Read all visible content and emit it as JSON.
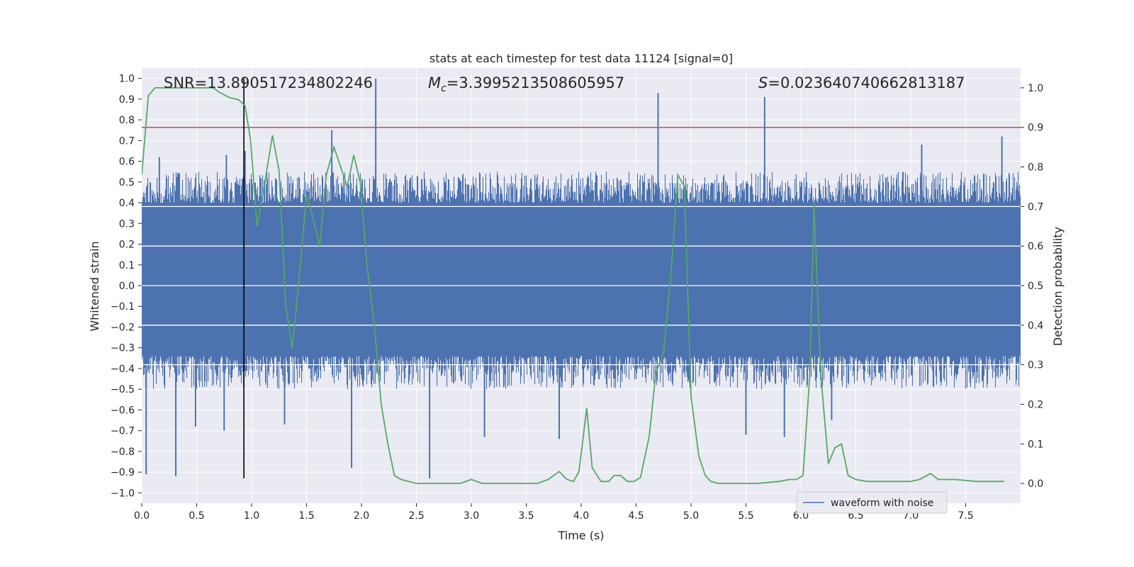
{
  "chart_data": {
    "type": "line",
    "title": "stats at each timestep for test data 11124 [signal=0]",
    "xlabel": "Time (s)",
    "ylabel": "Whitened strain",
    "y2label": "Detection probability",
    "xlim": [
      0.0,
      8.0
    ],
    "ylim": [
      -1.05,
      1.05
    ],
    "y2lim": [
      -0.05,
      1.05
    ],
    "x_ticks": [
      0.0,
      0.5,
      1.0,
      1.5,
      2.0,
      2.5,
      3.0,
      3.5,
      4.0,
      4.5,
      5.0,
      5.5,
      6.0,
      6.5,
      7.0,
      7.5
    ],
    "y_ticks": [
      -1.0,
      -0.9,
      -0.8,
      -0.7,
      -0.6,
      -0.5,
      -0.4,
      -0.3,
      -0.2,
      -0.1,
      0.0,
      0.1,
      0.2,
      0.3,
      0.4,
      0.5,
      0.6,
      0.7,
      0.8,
      0.9,
      1.0
    ],
    "y2_ticks": [
      0.0,
      0.1,
      0.2,
      0.3,
      0.4,
      0.5,
      0.6,
      0.7,
      0.8,
      0.9,
      1.0
    ],
    "grid": true,
    "legend_position": "lower-right",
    "annotations": {
      "snr": "SNR=13.890517234802246",
      "mc_symbol": "M",
      "mc_sub": "c",
      "mc_value": "=3.3995213508605957",
      "s_symbol": "S",
      "s_value": "=0.023640740662813187"
    },
    "series": [
      {
        "name": "waveform with noise",
        "axis": "left",
        "kind": "noise_envelope",
        "core_range": [
          -0.34,
          0.4
        ],
        "typical_peak_range": [
          -0.5,
          0.55
        ],
        "spikes": [
          {
            "x": 0.04,
            "y": -0.91
          },
          {
            "x": 0.16,
            "y": 0.62
          },
          {
            "x": 0.31,
            "y": -0.92
          },
          {
            "x": 0.49,
            "y": -0.68
          },
          {
            "x": 0.75,
            "y": -0.7
          },
          {
            "x": 0.77,
            "y": 0.63
          },
          {
            "x": 0.94,
            "y": 0.65
          },
          {
            "x": 1.3,
            "y": -0.67
          },
          {
            "x": 1.73,
            "y": 0.75
          },
          {
            "x": 1.91,
            "y": -0.88
          },
          {
            "x": 2.13,
            "y": 1.0
          },
          {
            "x": 2.62,
            "y": -0.93
          },
          {
            "x": 3.12,
            "y": -0.73
          },
          {
            "x": 3.8,
            "y": -0.74
          },
          {
            "x": 4.7,
            "y": 0.93
          },
          {
            "x": 5.5,
            "y": -0.72
          },
          {
            "x": 5.67,
            "y": 0.91
          },
          {
            "x": 5.85,
            "y": -0.73
          },
          {
            "x": 6.28,
            "y": -0.65
          },
          {
            "x": 7.1,
            "y": 0.68
          },
          {
            "x": 7.83,
            "y": 0.72
          }
        ]
      },
      {
        "name": "detection probability",
        "axis": "right",
        "x": [
          0.0,
          0.06,
          0.12,
          0.2,
          0.3,
          0.4,
          0.5,
          0.6,
          0.65,
          0.7,
          0.8,
          0.88,
          0.94,
          0.99,
          1.05,
          1.12,
          1.19,
          1.25,
          1.31,
          1.37,
          1.43,
          1.5,
          1.56,
          1.62,
          1.68,
          1.75,
          1.81,
          1.87,
          1.93,
          1.99,
          2.05,
          2.11,
          2.18,
          2.24,
          2.3,
          2.36,
          2.5,
          2.7,
          2.9,
          3.0,
          3.1,
          3.3,
          3.5,
          3.6,
          3.7,
          3.8,
          3.87,
          3.93,
          3.98,
          4.05,
          4.1,
          4.18,
          4.25,
          4.3,
          4.36,
          4.42,
          4.48,
          4.54,
          4.62,
          4.68,
          4.75,
          4.82,
          4.88,
          4.94,
          5.0,
          5.07,
          5.13,
          5.18,
          5.25,
          5.4,
          5.6,
          5.8,
          5.9,
          5.96,
          6.02,
          6.08,
          6.12,
          6.18,
          6.25,
          6.31,
          6.37,
          6.43,
          6.5,
          6.6,
          6.75,
          6.9,
          7.0,
          7.08,
          7.18,
          7.25,
          7.4,
          7.6,
          7.85
        ],
        "y": [
          0.78,
          0.98,
          1.0,
          1.0,
          1.0,
          1.0,
          1.0,
          1.0,
          1.0,
          0.99,
          0.975,
          0.97,
          0.955,
          0.87,
          0.65,
          0.76,
          0.88,
          0.79,
          0.45,
          0.34,
          0.51,
          0.73,
          0.67,
          0.6,
          0.78,
          0.85,
          0.8,
          0.75,
          0.83,
          0.76,
          0.55,
          0.42,
          0.2,
          0.1,
          0.02,
          0.01,
          0.0,
          0.0,
          0.0,
          0.01,
          0.0,
          0.0,
          0.0,
          0.0,
          0.01,
          0.03,
          0.01,
          0.005,
          0.03,
          0.19,
          0.04,
          0.005,
          0.005,
          0.02,
          0.02,
          0.005,
          0.005,
          0.015,
          0.12,
          0.28,
          0.33,
          0.54,
          0.78,
          0.75,
          0.22,
          0.07,
          0.02,
          0.005,
          0.0,
          0.0,
          0.0,
          0.005,
          0.01,
          0.01,
          0.02,
          0.27,
          0.71,
          0.28,
          0.05,
          0.09,
          0.1,
          0.02,
          0.01,
          0.005,
          0.005,
          0.005,
          0.005,
          0.01,
          0.025,
          0.01,
          0.01,
          0.005,
          0.005
        ]
      }
    ],
    "reference_lines": [
      {
        "orientation": "horizontal",
        "axis": "right",
        "value": 0.9
      },
      {
        "orientation": "vertical",
        "value": 0.93,
        "y_range": [
          -0.93,
          1.0
        ]
      }
    ],
    "colors": {
      "background": "#eaeaf2",
      "grid": "#ffffff",
      "waveform": "#4c72b0",
      "probability": "#55a868",
      "threshold": "#c44e52",
      "marker": "#000000",
      "text": "#262626"
    }
  }
}
